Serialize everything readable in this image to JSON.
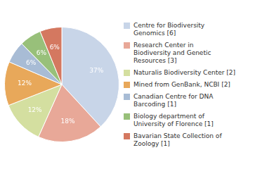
{
  "chart_data": {
    "type": "pie",
    "categories": [
      "Centre for Biodiversity\nGenomics [6]",
      "Research Center in\nBiodiversity and Genetic\nResources [3]",
      "Naturalis Biodiversity Center [2]",
      "Mined from GenBank, NCBI [2]",
      "Canadian Centre for DNA\nBarcoding [1]",
      "Biology department of\nUniversity of Florence [1]",
      "Bavarian State Collection of\nZoology [1]"
    ],
    "values": [
      37,
      18,
      12,
      12,
      6,
      6,
      6
    ],
    "value_labels": [
      "37%",
      "18%",
      "12%",
      "12%",
      "6%",
      "6%",
      "6%"
    ],
    "colors": [
      "#c8d5e8",
      "#e8a898",
      "#d4dfa0",
      "#e8a85a",
      "#a8bcd5",
      "#98c07a",
      "#d47860"
    ],
    "data_labels": true,
    "legend": "right"
  }
}
